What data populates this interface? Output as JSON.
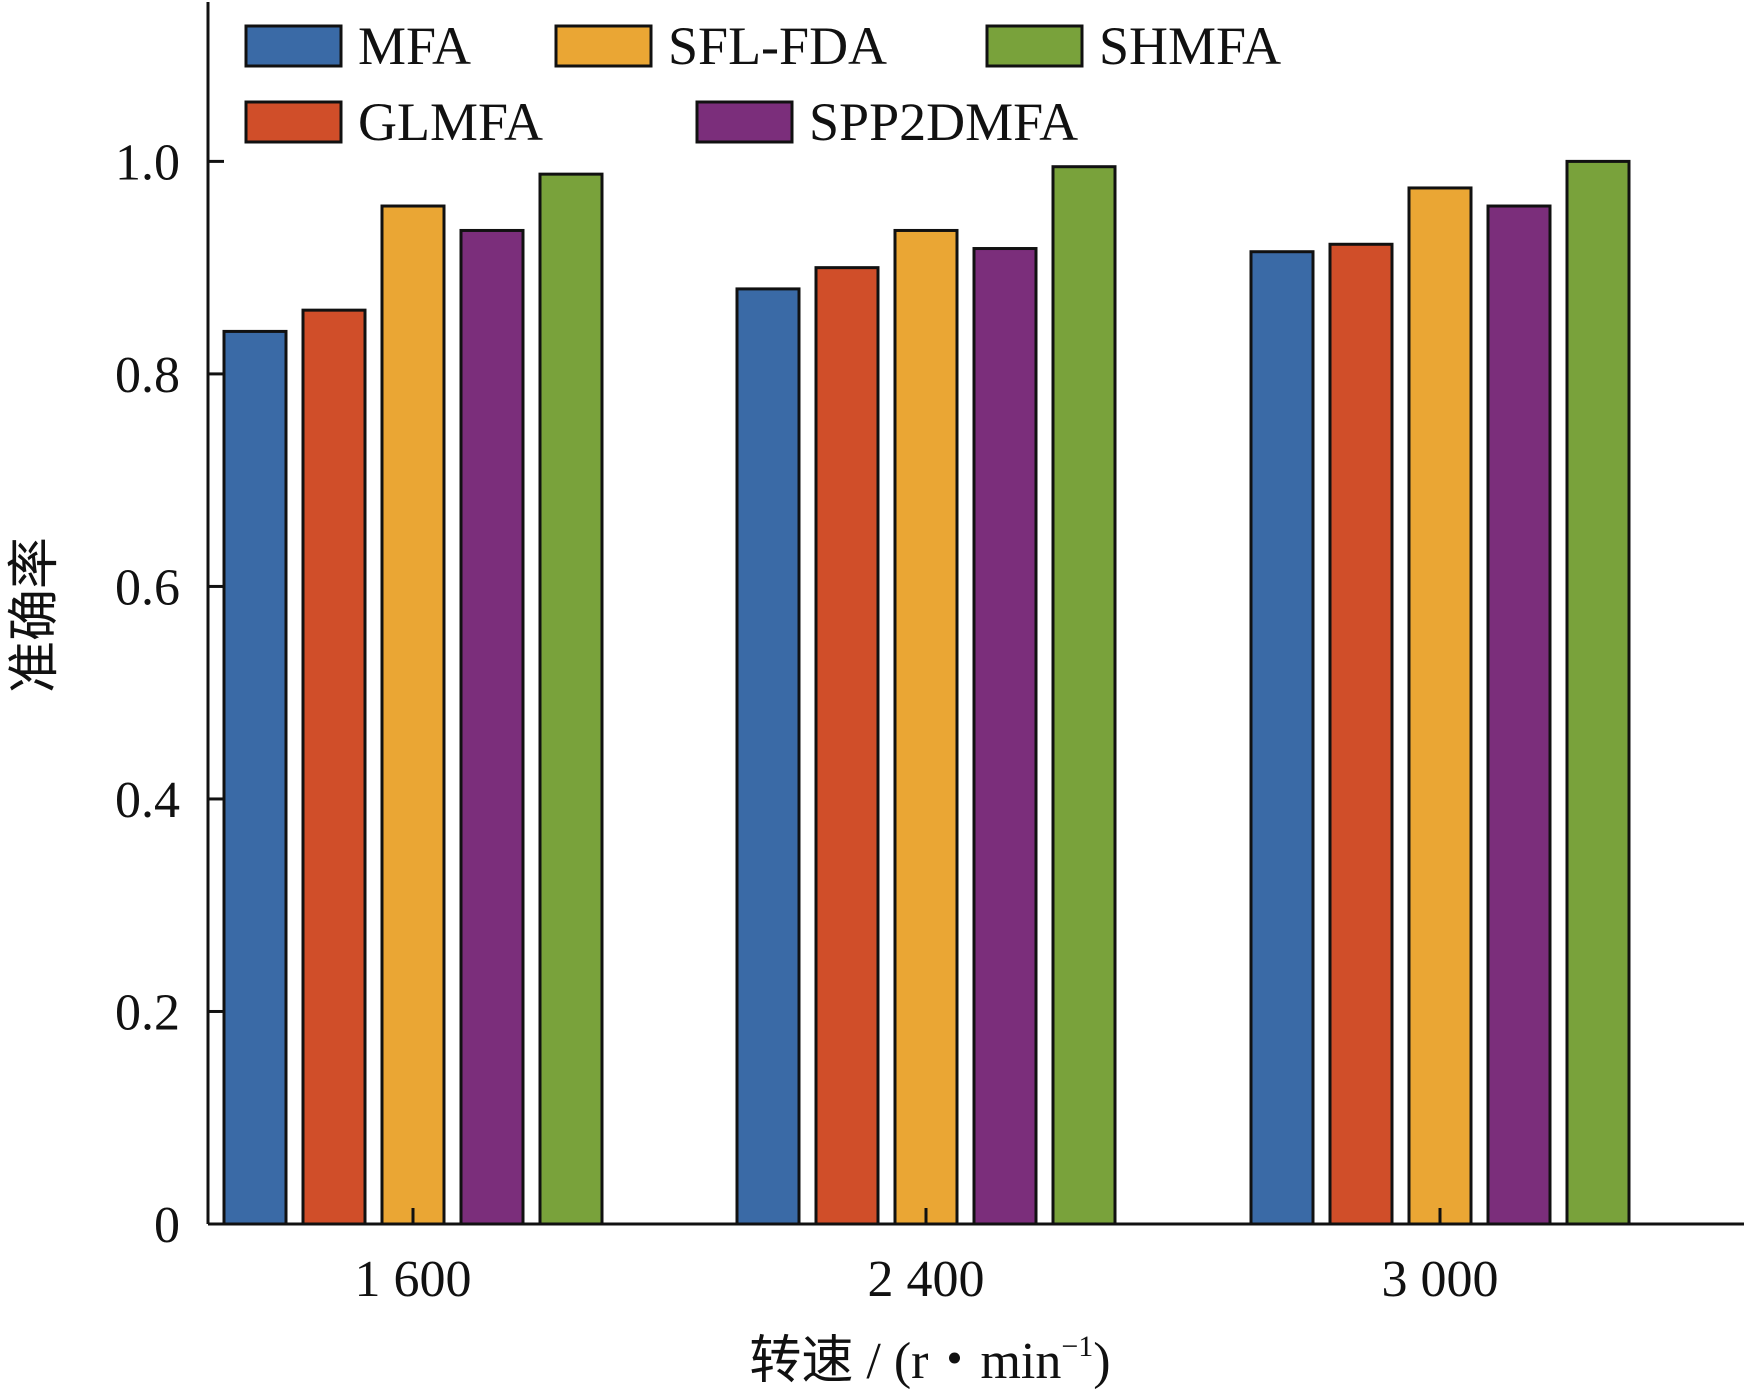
{
  "chart_data": {
    "type": "bar",
    "categories": [
      "1 600",
      "2 400",
      "3 000"
    ],
    "series": [
      {
        "name": "MFA",
        "values": [
          0.84,
          0.88,
          0.915
        ],
        "color": "#3a6aa6"
      },
      {
        "name": "GLMFA",
        "values": [
          0.86,
          0.9,
          0.922
        ],
        "color": "#d04e29"
      },
      {
        "name": "SFL-FDA",
        "values": [
          0.958,
          0.935,
          0.975
        ],
        "color": "#eaa634"
      },
      {
        "name": "SPP2DMFA",
        "values": [
          0.935,
          0.918,
          0.958
        ],
        "color": "#7b2e7b"
      },
      {
        "name": "SHMFA",
        "values": [
          0.988,
          0.995,
          1.0
        ],
        "color": "#79a23b"
      }
    ],
    "legend_order": [
      "MFA",
      "SFL-FDA",
      "SHMFA",
      "GLMFA",
      "SPP2DMFA"
    ],
    "legend_placement": "top-inside",
    "yticks": [
      "0",
      "0.2",
      "0.4",
      "0.6",
      "0.8",
      "1.0"
    ],
    "ytick_values": [
      0,
      0.2,
      0.4,
      0.6,
      0.8,
      1.0
    ],
    "ylim": [
      0,
      1.15
    ],
    "xlabel_main": "转速 / (r・min",
    "xlabel_sup": "−1",
    "xlabel_close": ")",
    "ylabel": "准确率",
    "grid": false
  }
}
